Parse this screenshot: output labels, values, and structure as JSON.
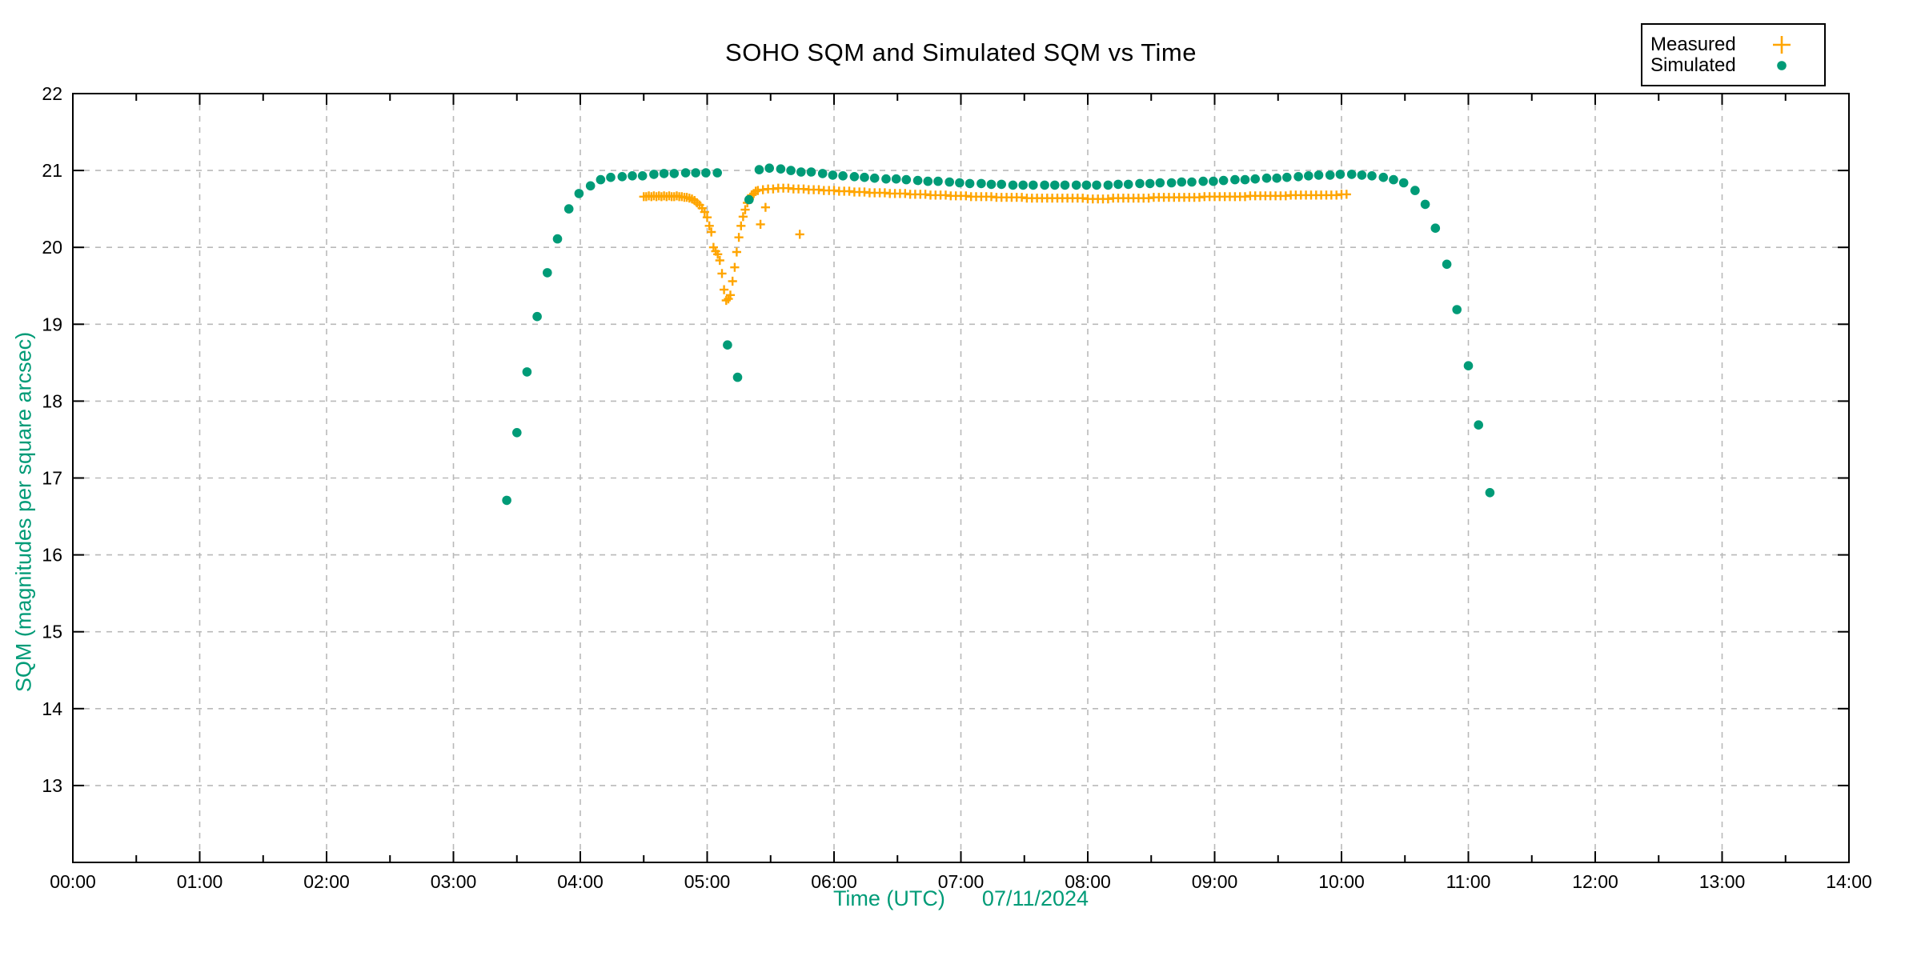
{
  "chart_data": {
    "type": "scatter",
    "title": "SOHO SQM and Simulated SQM vs Time",
    "xlabel": "Time (UTC)",
    "date_label": "07/11/2024",
    "ylabel": "SQM (magnitudes per square arcsec)",
    "x_axis": {
      "min_hours": 0,
      "max_hours": 14,
      "major_step_hours": 1,
      "minor_step_hours": 0.5,
      "tick_labels": [
        "00:00",
        "01:00",
        "02:00",
        "03:00",
        "04:00",
        "05:00",
        "06:00",
        "07:00",
        "08:00",
        "09:00",
        "10:00",
        "11:00",
        "12:00",
        "13:00",
        "14:00"
      ]
    },
    "y_axis": {
      "min": 12,
      "max": 22,
      "tick_values": [
        13,
        14,
        15,
        16,
        17,
        18,
        19,
        20,
        21,
        22
      ]
    },
    "grid": {
      "show": true,
      "color": "#b9b9b9",
      "dash": "7 7"
    },
    "colors": {
      "axis_text": "#000000",
      "label_accent": "#009B77",
      "border": "#000000"
    },
    "legend": {
      "entries": [
        {
          "label": "Measured",
          "marker": "plus",
          "color": "#FFA500"
        },
        {
          "label": "Simulated",
          "marker": "dot",
          "color": "#009B77"
        }
      ]
    },
    "series": [
      {
        "name": "Measured",
        "marker": "plus",
        "color": "#FFA500",
        "points": [
          [
            4.5,
            20.66
          ],
          [
            4.52,
            20.66
          ],
          [
            4.54,
            20.67
          ],
          [
            4.56,
            20.66
          ],
          [
            4.58,
            20.67
          ],
          [
            4.6,
            20.66
          ],
          [
            4.62,
            20.67
          ],
          [
            4.64,
            20.66
          ],
          [
            4.66,
            20.67
          ],
          [
            4.68,
            20.66
          ],
          [
            4.7,
            20.67
          ],
          [
            4.72,
            20.66
          ],
          [
            4.74,
            20.66
          ],
          [
            4.76,
            20.67
          ],
          [
            4.78,
            20.66
          ],
          [
            4.8,
            20.66
          ],
          [
            4.82,
            20.65
          ],
          [
            4.84,
            20.65
          ],
          [
            4.86,
            20.64
          ],
          [
            4.88,
            20.63
          ],
          [
            4.9,
            20.61
          ],
          [
            4.92,
            20.58
          ],
          [
            4.94,
            20.55
          ],
          [
            4.96,
            20.51
          ],
          [
            4.98,
            20.46
          ],
          [
            5.0,
            20.39
          ],
          [
            5.017,
            20.28
          ],
          [
            5.033,
            20.2
          ],
          [
            5.05,
            20.0
          ],
          [
            5.067,
            19.95
          ],
          [
            5.083,
            19.91
          ],
          [
            5.1,
            19.83
          ],
          [
            5.117,
            19.66
          ],
          [
            5.133,
            19.45
          ],
          [
            5.15,
            19.31
          ],
          [
            5.167,
            19.33
          ],
          [
            5.183,
            19.38
          ],
          [
            5.2,
            19.56
          ],
          [
            5.217,
            19.74
          ],
          [
            5.233,
            19.94
          ],
          [
            5.25,
            20.13
          ],
          [
            5.267,
            20.28
          ],
          [
            5.283,
            20.4
          ],
          [
            5.3,
            20.49
          ],
          [
            5.317,
            20.58
          ],
          [
            5.333,
            20.63
          ],
          [
            5.35,
            20.68
          ],
          [
            5.367,
            20.7
          ],
          [
            5.383,
            20.73
          ],
          [
            5.4,
            20.74
          ],
          [
            5.42,
            20.3
          ],
          [
            5.46,
            20.52
          ],
          [
            5.73,
            20.17
          ],
          [
            5.44,
            20.75
          ],
          [
            5.48,
            20.76
          ],
          [
            5.52,
            20.76
          ],
          [
            5.56,
            20.77
          ],
          [
            5.6,
            20.77
          ],
          [
            5.64,
            20.77
          ],
          [
            5.68,
            20.76
          ],
          [
            5.72,
            20.76
          ],
          [
            5.76,
            20.76
          ],
          [
            5.8,
            20.75
          ],
          [
            5.84,
            20.75
          ],
          [
            5.88,
            20.75
          ],
          [
            5.92,
            20.74
          ],
          [
            5.96,
            20.74
          ],
          [
            6.0,
            20.74
          ],
          [
            6.04,
            20.73
          ],
          [
            6.08,
            20.73
          ],
          [
            6.12,
            20.73
          ],
          [
            6.16,
            20.72
          ],
          [
            6.2,
            20.72
          ],
          [
            6.24,
            20.72
          ],
          [
            6.28,
            20.71
          ],
          [
            6.32,
            20.71
          ],
          [
            6.36,
            20.71
          ],
          [
            6.4,
            20.71
          ],
          [
            6.44,
            20.7
          ],
          [
            6.48,
            20.7
          ],
          [
            6.52,
            20.7
          ],
          [
            6.56,
            20.7
          ],
          [
            6.6,
            20.69
          ],
          [
            6.64,
            20.69
          ],
          [
            6.68,
            20.69
          ],
          [
            6.72,
            20.69
          ],
          [
            6.76,
            20.68
          ],
          [
            6.8,
            20.68
          ],
          [
            6.84,
            20.68
          ],
          [
            6.88,
            20.68
          ],
          [
            6.92,
            20.67
          ],
          [
            6.96,
            20.67
          ],
          [
            7.0,
            20.67
          ],
          [
            7.04,
            20.67
          ],
          [
            7.08,
            20.66
          ],
          [
            7.12,
            20.66
          ],
          [
            7.16,
            20.66
          ],
          [
            7.2,
            20.66
          ],
          [
            7.24,
            20.66
          ],
          [
            7.28,
            20.65
          ],
          [
            7.32,
            20.65
          ],
          [
            7.36,
            20.65
          ],
          [
            7.4,
            20.65
          ],
          [
            7.44,
            20.65
          ],
          [
            7.48,
            20.65
          ],
          [
            7.52,
            20.64
          ],
          [
            7.56,
            20.64
          ],
          [
            7.6,
            20.64
          ],
          [
            7.64,
            20.64
          ],
          [
            7.68,
            20.64
          ],
          [
            7.72,
            20.64
          ],
          [
            7.76,
            20.64
          ],
          [
            7.8,
            20.64
          ],
          [
            7.84,
            20.64
          ],
          [
            7.88,
            20.64
          ],
          [
            7.92,
            20.64
          ],
          [
            7.96,
            20.64
          ],
          [
            8.0,
            20.63
          ],
          [
            8.04,
            20.63
          ],
          [
            8.08,
            20.63
          ],
          [
            8.12,
            20.63
          ],
          [
            8.16,
            20.63
          ],
          [
            8.2,
            20.64
          ],
          [
            8.24,
            20.64
          ],
          [
            8.28,
            20.64
          ],
          [
            8.32,
            20.64
          ],
          [
            8.36,
            20.64
          ],
          [
            8.4,
            20.64
          ],
          [
            8.44,
            20.64
          ],
          [
            8.48,
            20.64
          ],
          [
            8.52,
            20.65
          ],
          [
            8.56,
            20.65
          ],
          [
            8.6,
            20.65
          ],
          [
            8.64,
            20.65
          ],
          [
            8.68,
            20.65
          ],
          [
            8.72,
            20.65
          ],
          [
            8.76,
            20.65
          ],
          [
            8.8,
            20.65
          ],
          [
            8.84,
            20.65
          ],
          [
            8.88,
            20.65
          ],
          [
            8.92,
            20.66
          ],
          [
            8.96,
            20.66
          ],
          [
            9.0,
            20.66
          ],
          [
            9.04,
            20.66
          ],
          [
            9.08,
            20.66
          ],
          [
            9.12,
            20.66
          ],
          [
            9.16,
            20.66
          ],
          [
            9.2,
            20.66
          ],
          [
            9.24,
            20.66
          ],
          [
            9.28,
            20.67
          ],
          [
            9.32,
            20.67
          ],
          [
            9.36,
            20.67
          ],
          [
            9.4,
            20.67
          ],
          [
            9.44,
            20.67
          ],
          [
            9.48,
            20.67
          ],
          [
            9.52,
            20.67
          ],
          [
            9.56,
            20.67
          ],
          [
            9.6,
            20.68
          ],
          [
            9.64,
            20.68
          ],
          [
            9.68,
            20.68
          ],
          [
            9.72,
            20.68
          ],
          [
            9.76,
            20.68
          ],
          [
            9.8,
            20.68
          ],
          [
            9.84,
            20.68
          ],
          [
            9.88,
            20.68
          ],
          [
            9.92,
            20.68
          ],
          [
            9.96,
            20.68
          ],
          [
            10.0,
            20.69
          ],
          [
            10.04,
            20.69
          ]
        ]
      },
      {
        "name": "Simulated",
        "marker": "dot",
        "color": "#009B77",
        "points": [
          [
            3.42,
            16.71
          ],
          [
            3.5,
            17.59
          ],
          [
            3.58,
            18.38
          ],
          [
            3.66,
            19.1
          ],
          [
            3.74,
            19.67
          ],
          [
            3.82,
            20.11
          ],
          [
            3.91,
            20.5
          ],
          [
            3.99,
            20.7
          ],
          [
            4.08,
            20.8
          ],
          [
            4.16,
            20.88
          ],
          [
            4.24,
            20.91
          ],
          [
            4.33,
            20.92
          ],
          [
            4.41,
            20.93
          ],
          [
            4.49,
            20.93
          ],
          [
            4.58,
            20.95
          ],
          [
            4.66,
            20.96
          ],
          [
            4.74,
            20.96
          ],
          [
            4.83,
            20.97
          ],
          [
            4.91,
            20.97
          ],
          [
            4.99,
            20.97
          ],
          [
            5.08,
            20.97
          ],
          [
            5.16,
            18.73
          ],
          [
            5.24,
            18.31
          ],
          [
            5.33,
            20.62
          ],
          [
            5.41,
            21.01
          ],
          [
            5.49,
            21.03
          ],
          [
            5.58,
            21.02
          ],
          [
            5.66,
            21.0
          ],
          [
            5.74,
            20.98
          ],
          [
            5.82,
            20.98
          ],
          [
            5.91,
            20.96
          ],
          [
            5.99,
            20.94
          ],
          [
            6.07,
            20.93
          ],
          [
            6.16,
            20.92
          ],
          [
            6.24,
            20.91
          ],
          [
            6.32,
            20.9
          ],
          [
            6.41,
            20.89
          ],
          [
            6.49,
            20.89
          ],
          [
            6.57,
            20.88
          ],
          [
            6.66,
            20.87
          ],
          [
            6.74,
            20.86
          ],
          [
            6.82,
            20.86
          ],
          [
            6.91,
            20.85
          ],
          [
            6.99,
            20.84
          ],
          [
            7.07,
            20.83
          ],
          [
            7.16,
            20.83
          ],
          [
            7.24,
            20.82
          ],
          [
            7.32,
            20.82
          ],
          [
            7.41,
            20.81
          ],
          [
            7.49,
            20.81
          ],
          [
            7.57,
            20.81
          ],
          [
            7.66,
            20.81
          ],
          [
            7.74,
            20.81
          ],
          [
            7.82,
            20.81
          ],
          [
            7.91,
            20.81
          ],
          [
            7.99,
            20.81
          ],
          [
            8.07,
            20.81
          ],
          [
            8.16,
            20.81
          ],
          [
            8.24,
            20.82
          ],
          [
            8.32,
            20.82
          ],
          [
            8.41,
            20.83
          ],
          [
            8.49,
            20.83
          ],
          [
            8.57,
            20.84
          ],
          [
            8.66,
            20.84
          ],
          [
            8.74,
            20.85
          ],
          [
            8.82,
            20.85
          ],
          [
            8.91,
            20.86
          ],
          [
            8.99,
            20.86
          ],
          [
            9.07,
            20.87
          ],
          [
            9.16,
            20.88
          ],
          [
            9.24,
            20.88
          ],
          [
            9.32,
            20.89
          ],
          [
            9.41,
            20.9
          ],
          [
            9.49,
            20.9
          ],
          [
            9.57,
            20.91
          ],
          [
            9.66,
            20.92
          ],
          [
            9.74,
            20.93
          ],
          [
            9.82,
            20.94
          ],
          [
            9.91,
            20.94
          ],
          [
            9.99,
            20.95
          ],
          [
            10.08,
            20.95
          ],
          [
            10.16,
            20.94
          ],
          [
            10.24,
            20.93
          ],
          [
            10.33,
            20.91
          ],
          [
            10.41,
            20.88
          ],
          [
            10.49,
            20.84
          ],
          [
            10.58,
            20.74
          ],
          [
            10.66,
            20.56
          ],
          [
            10.74,
            20.25
          ],
          [
            10.83,
            19.78
          ],
          [
            10.91,
            19.19
          ],
          [
            11.0,
            18.46
          ],
          [
            11.08,
            17.69
          ],
          [
            11.17,
            16.81
          ]
        ]
      }
    ]
  }
}
